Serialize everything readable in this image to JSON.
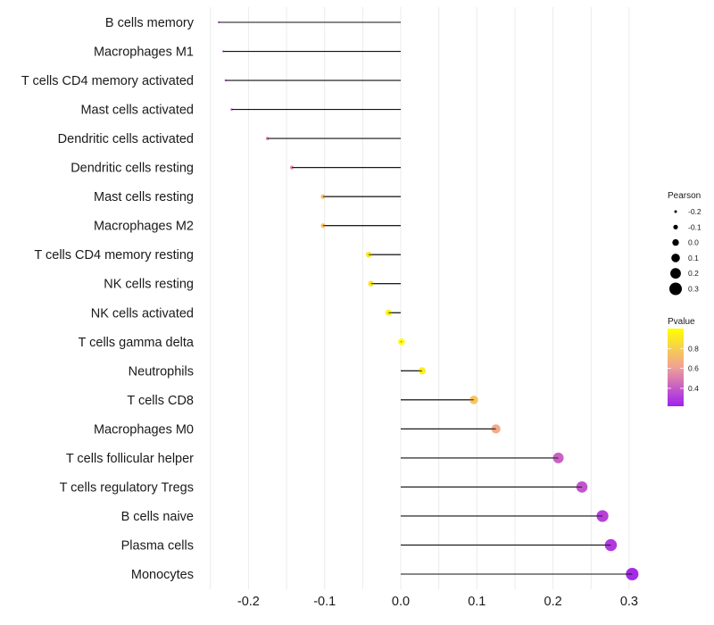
{
  "chart_data": {
    "type": "lollipop",
    "title": "",
    "xlabel": "",
    "ylabel": "",
    "xlim": [
      -0.255,
      0.315
    ],
    "x_ticks": [
      -0.2,
      -0.1,
      0.0,
      0.1,
      0.2,
      0.3
    ],
    "x_tick_labels": [
      "-0.2",
      "-0.1",
      "0.0",
      "0.1",
      "0.2",
      "0.3"
    ],
    "grid": true,
    "categories": [
      "B cells memory",
      "Macrophages M1",
      "T cells CD4 memory activated",
      "Mast cells activated",
      "Dendritic cells activated",
      "Dendritic cells resting",
      "Mast cells resting",
      "Macrophages M2",
      "T cells CD4 memory resting",
      "NK cells resting",
      "NK cells activated",
      "T cells gamma delta",
      "Neutrophils",
      "T cells CD8",
      "Macrophages M0",
      "T cells follicular helper",
      "T cells regulatory  Tregs ",
      "B cells naive",
      "Plasma cells",
      "Monocytes"
    ],
    "series": [
      {
        "name": "Pearson",
        "values": [
          -0.239,
          -0.233,
          -0.23,
          -0.222,
          -0.175,
          -0.143,
          -0.102,
          -0.102,
          -0.042,
          -0.039,
          -0.016,
          0.001,
          0.028,
          0.096,
          0.125,
          0.207,
          0.238,
          0.265,
          0.276,
          0.304
        ]
      },
      {
        "name": "Pvalue",
        "values": [
          0.35,
          0.31,
          0.33,
          0.35,
          0.48,
          0.55,
          0.74,
          0.74,
          0.91,
          0.9,
          0.95,
          0.99,
          0.93,
          0.76,
          0.65,
          0.42,
          0.38,
          0.32,
          0.3,
          0.25
        ]
      }
    ],
    "encoding": {
      "x": "Pearson",
      "size": "Pearson",
      "color": "Pvalue"
    },
    "legends": {
      "size": {
        "title": "Pearson",
        "breaks": [
          -0.2,
          -0.1,
          0.0,
          0.1,
          0.2,
          0.3
        ],
        "labels": [
          "-0.2",
          "-0.1",
          "0.0",
          "0.1",
          "0.2",
          "0.3"
        ],
        "placement": "right"
      },
      "color": {
        "title": "Pvalue",
        "range": [
          0.22,
          1.0
        ],
        "breaks": [
          0.4,
          0.6,
          0.8
        ],
        "labels": [
          "0.4",
          "0.6",
          "0.8"
        ],
        "low_color": "#A020F0",
        "high_color": "#FFFF00",
        "placement": "right"
      }
    }
  }
}
